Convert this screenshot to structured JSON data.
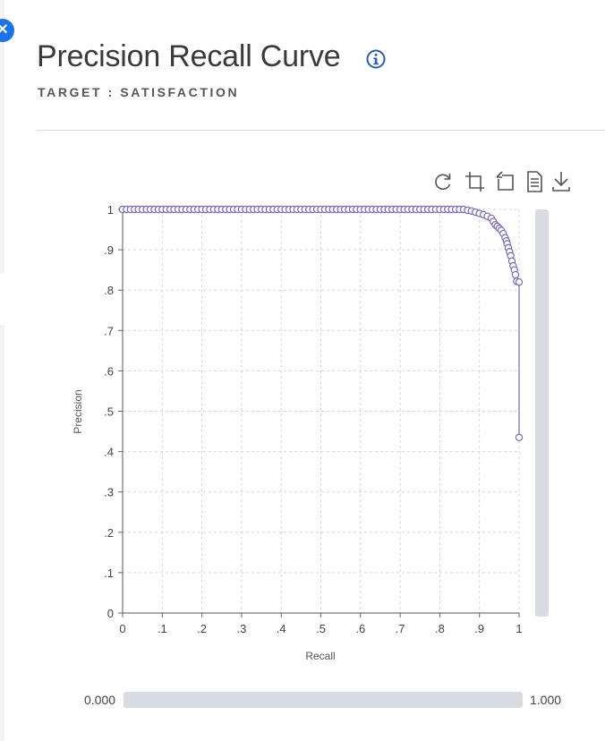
{
  "header": {
    "title": "Precision Recall Curve",
    "subtitle": "TARGET : SATISFACTION"
  },
  "icons": {
    "close": "close-icon",
    "info": "info-icon",
    "toolbar": [
      "refresh-icon",
      "crop-icon",
      "undo-zoom-icon",
      "data-view-icon",
      "download-icon"
    ]
  },
  "colors": {
    "series": "#7b68b8",
    "close_button": "#1a73e8",
    "info_icon": "#2a5db0"
  },
  "zoom": {
    "x_range_min_label": "0.000",
    "x_range_max_label": "1.000"
  },
  "chart_data": {
    "type": "scatter",
    "xlabel": "Recall",
    "ylabel": "Precision",
    "xlim": [
      0,
      1
    ],
    "ylim": [
      0,
      1
    ],
    "x_ticks": [
      "0",
      ".1",
      ".2",
      ".3",
      ".4",
      ".5",
      ".6",
      ".7",
      ".8",
      ".9",
      "1"
    ],
    "y_ticks": [
      "0",
      ".1",
      ".2",
      ".3",
      ".4",
      ".5",
      ".6",
      ".7",
      ".8",
      ".9",
      "1"
    ],
    "grid": true,
    "series": [
      {
        "color": "#7b68b8",
        "points": [
          [
            0.0,
            1.0
          ],
          [
            0.01,
            1.0
          ],
          [
            0.02,
            1.0
          ],
          [
            0.03,
            1.0
          ],
          [
            0.04,
            1.0
          ],
          [
            0.05,
            1.0
          ],
          [
            0.06,
            1.0
          ],
          [
            0.07,
            1.0
          ],
          [
            0.08,
            1.0
          ],
          [
            0.09,
            1.0
          ],
          [
            0.1,
            1.0
          ],
          [
            0.11,
            1.0
          ],
          [
            0.12,
            1.0
          ],
          [
            0.13,
            1.0
          ],
          [
            0.14,
            1.0
          ],
          [
            0.15,
            1.0
          ],
          [
            0.16,
            1.0
          ],
          [
            0.17,
            1.0
          ],
          [
            0.18,
            1.0
          ],
          [
            0.19,
            1.0
          ],
          [
            0.2,
            1.0
          ],
          [
            0.21,
            1.0
          ],
          [
            0.22,
            1.0
          ],
          [
            0.23,
            1.0
          ],
          [
            0.24,
            1.0
          ],
          [
            0.25,
            1.0
          ],
          [
            0.26,
            1.0
          ],
          [
            0.27,
            1.0
          ],
          [
            0.28,
            1.0
          ],
          [
            0.29,
            1.0
          ],
          [
            0.3,
            1.0
          ],
          [
            0.31,
            1.0
          ],
          [
            0.32,
            1.0
          ],
          [
            0.33,
            1.0
          ],
          [
            0.34,
            1.0
          ],
          [
            0.35,
            1.0
          ],
          [
            0.36,
            1.0
          ],
          [
            0.37,
            1.0
          ],
          [
            0.38,
            1.0
          ],
          [
            0.39,
            1.0
          ],
          [
            0.4,
            1.0
          ],
          [
            0.41,
            1.0
          ],
          [
            0.42,
            1.0
          ],
          [
            0.43,
            1.0
          ],
          [
            0.44,
            1.0
          ],
          [
            0.45,
            1.0
          ],
          [
            0.46,
            1.0
          ],
          [
            0.47,
            1.0
          ],
          [
            0.48,
            1.0
          ],
          [
            0.49,
            1.0
          ],
          [
            0.5,
            1.0
          ],
          [
            0.51,
            1.0
          ],
          [
            0.52,
            1.0
          ],
          [
            0.53,
            1.0
          ],
          [
            0.54,
            1.0
          ],
          [
            0.55,
            1.0
          ],
          [
            0.56,
            1.0
          ],
          [
            0.57,
            1.0
          ],
          [
            0.58,
            1.0
          ],
          [
            0.59,
            1.0
          ],
          [
            0.6,
            1.0
          ],
          [
            0.61,
            1.0
          ],
          [
            0.62,
            1.0
          ],
          [
            0.63,
            1.0
          ],
          [
            0.64,
            1.0
          ],
          [
            0.65,
            1.0
          ],
          [
            0.66,
            1.0
          ],
          [
            0.67,
            1.0
          ],
          [
            0.68,
            1.0
          ],
          [
            0.69,
            1.0
          ],
          [
            0.7,
            1.0
          ],
          [
            0.71,
            1.0
          ],
          [
            0.72,
            1.0
          ],
          [
            0.73,
            1.0
          ],
          [
            0.74,
            1.0
          ],
          [
            0.75,
            1.0
          ],
          [
            0.76,
            1.0
          ],
          [
            0.77,
            1.0
          ],
          [
            0.78,
            1.0
          ],
          [
            0.79,
            1.0
          ],
          [
            0.8,
            1.0
          ],
          [
            0.81,
            1.0
          ],
          [
            0.82,
            1.0
          ],
          [
            0.83,
            1.0
          ],
          [
            0.84,
            1.0
          ],
          [
            0.85,
            1.0
          ],
          [
            0.86,
            1.0
          ],
          [
            0.87,
            0.998
          ],
          [
            0.88,
            0.996
          ],
          [
            0.89,
            0.993
          ],
          [
            0.9,
            0.99
          ],
          [
            0.91,
            0.987
          ],
          [
            0.92,
            0.983
          ],
          [
            0.93,
            0.978
          ],
          [
            0.935,
            0.97
          ],
          [
            0.94,
            0.962
          ],
          [
            0.945,
            0.958
          ],
          [
            0.95,
            0.953
          ],
          [
            0.955,
            0.948
          ],
          [
            0.96,
            0.94
          ],
          [
            0.965,
            0.93
          ],
          [
            0.968,
            0.922
          ],
          [
            0.97,
            0.915
          ],
          [
            0.973,
            0.905
          ],
          [
            0.976,
            0.895
          ],
          [
            0.979,
            0.885
          ],
          [
            0.982,
            0.872
          ],
          [
            0.985,
            0.86
          ],
          [
            0.988,
            0.85
          ],
          [
            0.991,
            0.838
          ],
          [
            0.994,
            0.822
          ],
          [
            1.0,
            0.82
          ],
          [
            1.0,
            0.435
          ]
        ]
      }
    ]
  }
}
